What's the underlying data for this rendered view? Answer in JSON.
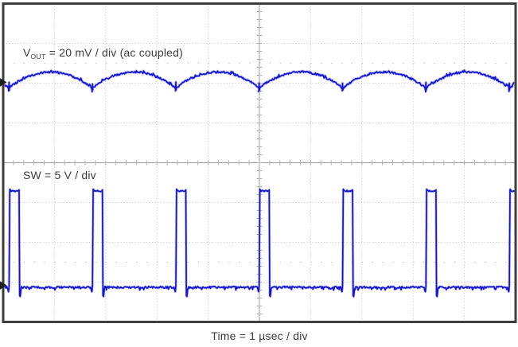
{
  "figure": {
    "colors": {
      "background": "#ffffff",
      "trace": "#1414cf",
      "trace_halo": "#8289ec",
      "grid_dots": "#c2c2c2",
      "grid_axis": "#9b9b9b",
      "grid_minor_tick": "#b0b0b0",
      "border": "#3d3d3d",
      "text": "#3c3c3c",
      "ref_marker": "#1f1f1f"
    }
  },
  "labels": {
    "ch1": {
      "prefix": "V",
      "subscript": "OUT",
      "rest": " = 20 mV / div (ac coupled)"
    },
    "ch2": "SW = 5 V / div",
    "time_axis": "Time = 1 µsec / div"
  },
  "chart_data": {
    "type": "line",
    "subtype": "oscilloscope",
    "title": "",
    "xlabel": "Time = 1 µsec / div",
    "time_per_div": "1 µsec",
    "x_divisions": 10,
    "y_divisions": 8,
    "grid": "dotted division lines, solid center axes with 5 minor ticks per division, sparse tick rows at ±2.5 divisions from center",
    "legend_position": "in-plot text labels",
    "series": [
      {
        "name": "VOUT",
        "scale": "20 mV / div",
        "coupling": "ac coupled",
        "shape": "output ripple arcs with switching spikes at valleys",
        "period_divs": 1.627,
        "first_valley_divs": 0.115,
        "valley_divs_above_center": 1.86,
        "peak_divs_above_center": 2.28,
        "ripple_pkpk_mV": 8.4,
        "ref_marker_divs_above_center": 2.02
      },
      {
        "name": "SW",
        "scale": "5 V / div",
        "coupling": "dc",
        "shape": "low-duty pulse train with leading overshoot and falling-edge undershoot",
        "period_divs": 1.627,
        "first_rise_divs": 0.115,
        "pulse_width_divs": 0.195,
        "low_divs_above_center": -3.13,
        "high_divs_above_center": -0.71,
        "undershoot_divs_above_center": -3.36,
        "high_volts": 12.1,
        "low_volts": 0,
        "ref_marker_divs_above_center": -3.08
      }
    ]
  }
}
